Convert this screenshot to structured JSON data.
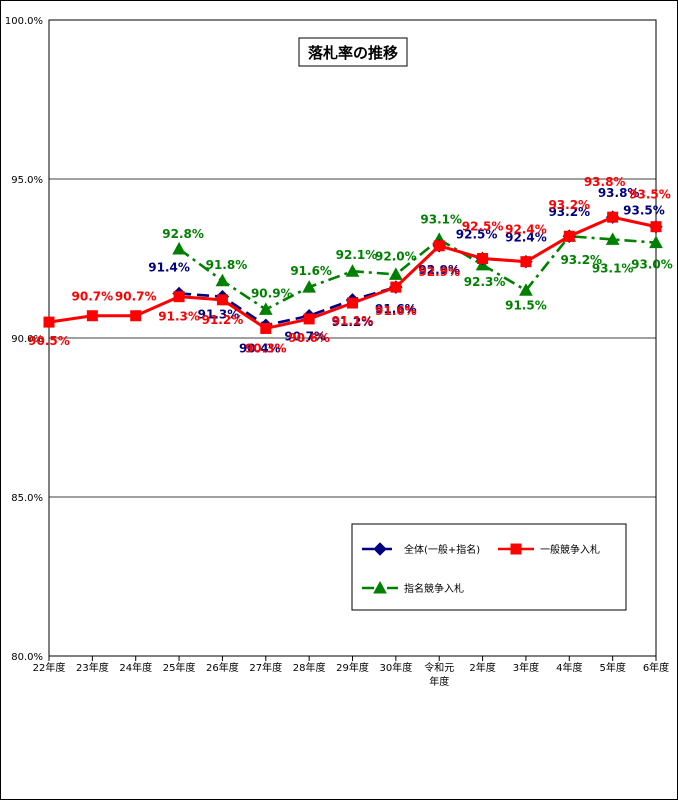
{
  "chart_data": {
    "type": "line",
    "title": "落札率の推移",
    "categories": [
      "22年度",
      "23年度",
      "24年度",
      "25年度",
      "26年度",
      "27年度",
      "28年度",
      "29年度",
      "30年度",
      "令和元年度",
      "2年度",
      "3年度",
      "4年度",
      "5年度",
      "6年度"
    ],
    "category_lines": [
      [
        "22年度"
      ],
      [
        "23年度"
      ],
      [
        "24年度"
      ],
      [
        "25年度"
      ],
      [
        "26年度"
      ],
      [
        "27年度"
      ],
      [
        "28年度"
      ],
      [
        "29年度"
      ],
      [
        "30年度"
      ],
      [
        "令和元",
        "年度"
      ],
      [
        "2年度"
      ],
      [
        "3年度"
      ],
      [
        "4年度"
      ],
      [
        "5年度"
      ],
      [
        "6年度"
      ]
    ],
    "ylim": [
      80.0,
      100.0
    ],
    "yticks": [
      80.0,
      85.0,
      90.0,
      95.0,
      100.0
    ],
    "ytick_labels": [
      "80.0%",
      "85.0%",
      "90.0%",
      "95.0%",
      "100.0%"
    ],
    "grid": true,
    "legend_position": "bottom-right",
    "series": [
      {
        "name": "全体(一般+指名)",
        "color": "#000080",
        "marker": "diamond",
        "line": "dashed",
        "values": [
          null,
          null,
          null,
          91.4,
          91.3,
          90.4,
          90.7,
          91.2,
          91.6,
          92.9,
          92.5,
          92.4,
          93.2,
          93.8,
          93.5
        ],
        "labels": [
          null,
          null,
          null,
          "91.4%",
          "91.3%",
          "90.4%",
          "90.7%",
          "91.2%",
          "91.6%",
          "92.9%",
          "92.5%",
          "92.4%",
          "93.2%",
          "93.8%",
          "93.5%"
        ]
      },
      {
        "name": "一般競争入札",
        "color": "#ff0000",
        "marker": "square",
        "line": "solid",
        "values": [
          90.5,
          90.7,
          90.7,
          91.3,
          91.2,
          90.3,
          90.6,
          91.1,
          91.6,
          92.9,
          92.5,
          92.4,
          93.2,
          93.8,
          93.5
        ],
        "labels": [
          "90.5%",
          "90.7%",
          "90.7%",
          "91.3%",
          "91.2%",
          "90.3%",
          "90.6%",
          "91.1%",
          "91.6%",
          "92.9%",
          "92.5%",
          "92.4%",
          "93.2%",
          "93.8%",
          "93.5%"
        ]
      },
      {
        "name": "指名競争入札",
        "color": "#008000",
        "marker": "triangle",
        "line": "dashdot",
        "values": [
          null,
          null,
          null,
          92.8,
          91.8,
          90.9,
          91.6,
          92.1,
          92.0,
          93.1,
          92.3,
          91.5,
          93.2,
          93.1,
          93.0
        ],
        "labels": [
          null,
          null,
          null,
          "92.8%",
          "91.8%",
          "90.9%",
          "91.6%",
          "92.1%",
          "92.0%",
          "93.1%",
          "92.3%",
          "91.5%",
          "93.2%",
          "93.1%",
          "93.0%"
        ]
      }
    ]
  }
}
